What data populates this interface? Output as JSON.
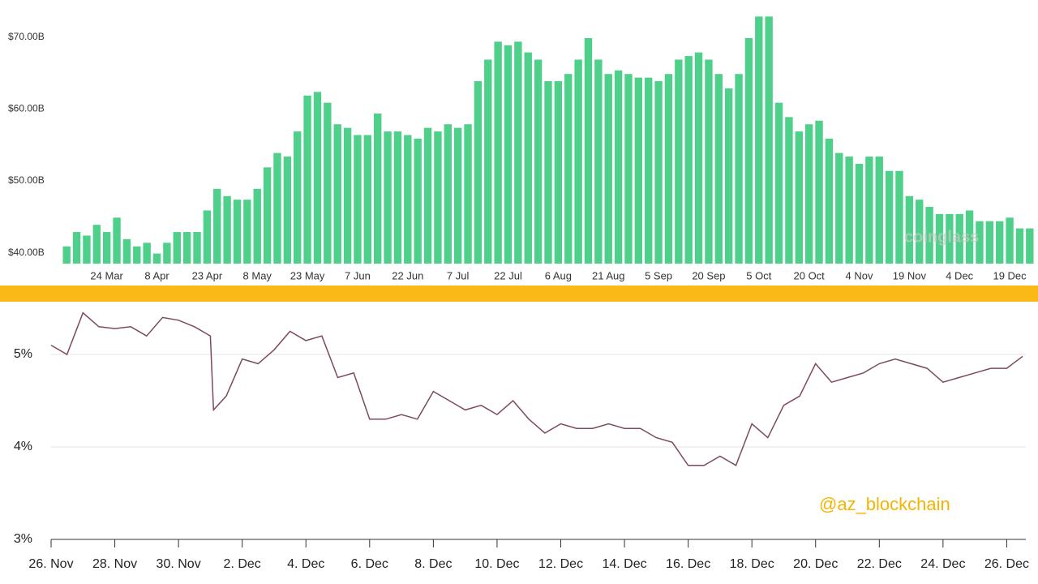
{
  "chart_data": [
    {
      "type": "bar",
      "annotation": "coinglass",
      "color": "#4fd08a",
      "categories": [
        null,
        null,
        null,
        null,
        "24 Mar",
        null,
        null,
        null,
        null,
        "8 Apr",
        null,
        null,
        null,
        null,
        "23 Apr",
        null,
        null,
        null,
        null,
        "8 May",
        null,
        null,
        null,
        null,
        "23 May",
        null,
        null,
        null,
        null,
        "7 Jun",
        null,
        null,
        null,
        null,
        "22 Jun",
        null,
        null,
        null,
        null,
        "7 Jul",
        null,
        null,
        null,
        null,
        "22 Jul",
        null,
        null,
        null,
        null,
        "6 Aug",
        null,
        null,
        null,
        null,
        "21 Aug",
        null,
        null,
        null,
        null,
        "5 Sep",
        null,
        null,
        null,
        null,
        "20 Sep",
        null,
        null,
        null,
        null,
        "5 Oct",
        null,
        null,
        null,
        null,
        "20 Oct",
        null,
        null,
        null,
        null,
        "4 Nov",
        null,
        null,
        null,
        null,
        "19 Nov",
        null,
        null,
        null,
        null,
        "4 Dec",
        null,
        null,
        null,
        null,
        "19 Dec",
        null,
        null
      ],
      "values": [
        41,
        43,
        42.5,
        44,
        43,
        45,
        42,
        41,
        41.5,
        40,
        41.5,
        43,
        43,
        43,
        46,
        49,
        48,
        47.5,
        47.5,
        49,
        52,
        54,
        53.5,
        57,
        62,
        62.5,
        61,
        58,
        57.5,
        56.5,
        56.5,
        59.5,
        57,
        57,
        56.5,
        56,
        57.5,
        57,
        58,
        57.5,
        58,
        64,
        67,
        69.5,
        69,
        69.5,
        68,
        67,
        64,
        64,
        65,
        67,
        70,
        67,
        65,
        65.5,
        65,
        64.5,
        64.5,
        64,
        65,
        67,
        67.5,
        68,
        67,
        65,
        63,
        65,
        70,
        73,
        73,
        61,
        59,
        57,
        58,
        58.5,
        56,
        54,
        53.5,
        52.5,
        53.5,
        53.5,
        51.5,
        51.5,
        48,
        47.5,
        46.5,
        45.5,
        45.5,
        45.5,
        46,
        44.5,
        44.5,
        44.5,
        45,
        43.5,
        43.5
      ],
      "ylim": [
        38.6,
        75.3
      ],
      "yticks": [
        {
          "value": 40,
          "label": "$40.00B"
        },
        {
          "value": 50,
          "label": "$50.00B"
        },
        {
          "value": 60,
          "label": "$60.00B"
        },
        {
          "value": 70,
          "label": "$70.00B"
        }
      ]
    },
    {
      "type": "line",
      "annotation": "@az_blockchain",
      "color": "#7d4a5c",
      "grid": true,
      "x": [
        0,
        0.5,
        1,
        1.5,
        2,
        2.5,
        3,
        3.5,
        4,
        4.5,
        5,
        5.1,
        5.5,
        6,
        6.5,
        7,
        7.5,
        8,
        8.5,
        9,
        9.5,
        10,
        10.5,
        11,
        11.5,
        12,
        12.5,
        13,
        13.5,
        14,
        14.5,
        15,
        15.5,
        16,
        16.5,
        17,
        17.5,
        18,
        18.5,
        19,
        19.5,
        20,
        20.5,
        21,
        21.5,
        22,
        22.5,
        23,
        23.5,
        24,
        24.5,
        25,
        25.5,
        26,
        26.5,
        27,
        27.5,
        28,
        28.5,
        29,
        29.5,
        30,
        30.5
      ],
      "values": [
        5.1,
        5.0,
        5.45,
        5.3,
        5.28,
        5.3,
        5.2,
        5.4,
        5.37,
        5.3,
        5.2,
        4.4,
        4.55,
        4.95,
        4.9,
        5.05,
        5.25,
        5.15,
        5.2,
        4.75,
        4.8,
        4.3,
        4.3,
        4.35,
        4.3,
        4.6,
        4.5,
        4.4,
        4.45,
        4.35,
        4.5,
        4.3,
        4.15,
        4.25,
        4.2,
        4.2,
        4.25,
        4.2,
        4.2,
        4.1,
        4.05,
        3.8,
        3.8,
        3.9,
        3.8,
        4.25,
        4.1,
        4.45,
        4.55,
        4.9,
        4.7,
        4.75,
        4.8,
        4.9,
        4.95,
        4.9,
        4.85,
        4.7,
        4.75,
        4.8,
        4.85,
        4.85,
        4.98
      ],
      "xlim": [
        0,
        30.6
      ],
      "xticks": [
        {
          "value": 0,
          "label": "26. Nov"
        },
        {
          "value": 2,
          "label": "28. Nov"
        },
        {
          "value": 4,
          "label": "30. Nov"
        },
        {
          "value": 6,
          "label": "2. Dec"
        },
        {
          "value": 8,
          "label": "4. Dec"
        },
        {
          "value": 10,
          "label": "6. Dec"
        },
        {
          "value": 12,
          "label": "8. Dec"
        },
        {
          "value": 14,
          "label": "10. Dec"
        },
        {
          "value": 16,
          "label": "12. Dec"
        },
        {
          "value": 18,
          "label": "14. Dec"
        },
        {
          "value": 20,
          "label": "16. Dec"
        },
        {
          "value": 22,
          "label": "18. Dec"
        },
        {
          "value": 24,
          "label": "20. Dec"
        },
        {
          "value": 26,
          "label": "22. Dec"
        },
        {
          "value": 28,
          "label": "24. Dec"
        },
        {
          "value": 30,
          "label": "26. Dec"
        }
      ],
      "ylim": [
        3,
        5.57
      ],
      "yticks": [
        {
          "value": 3,
          "label": "3%"
        },
        {
          "value": 4,
          "label": "4%"
        },
        {
          "value": 5,
          "label": "5%"
        }
      ]
    }
  ]
}
